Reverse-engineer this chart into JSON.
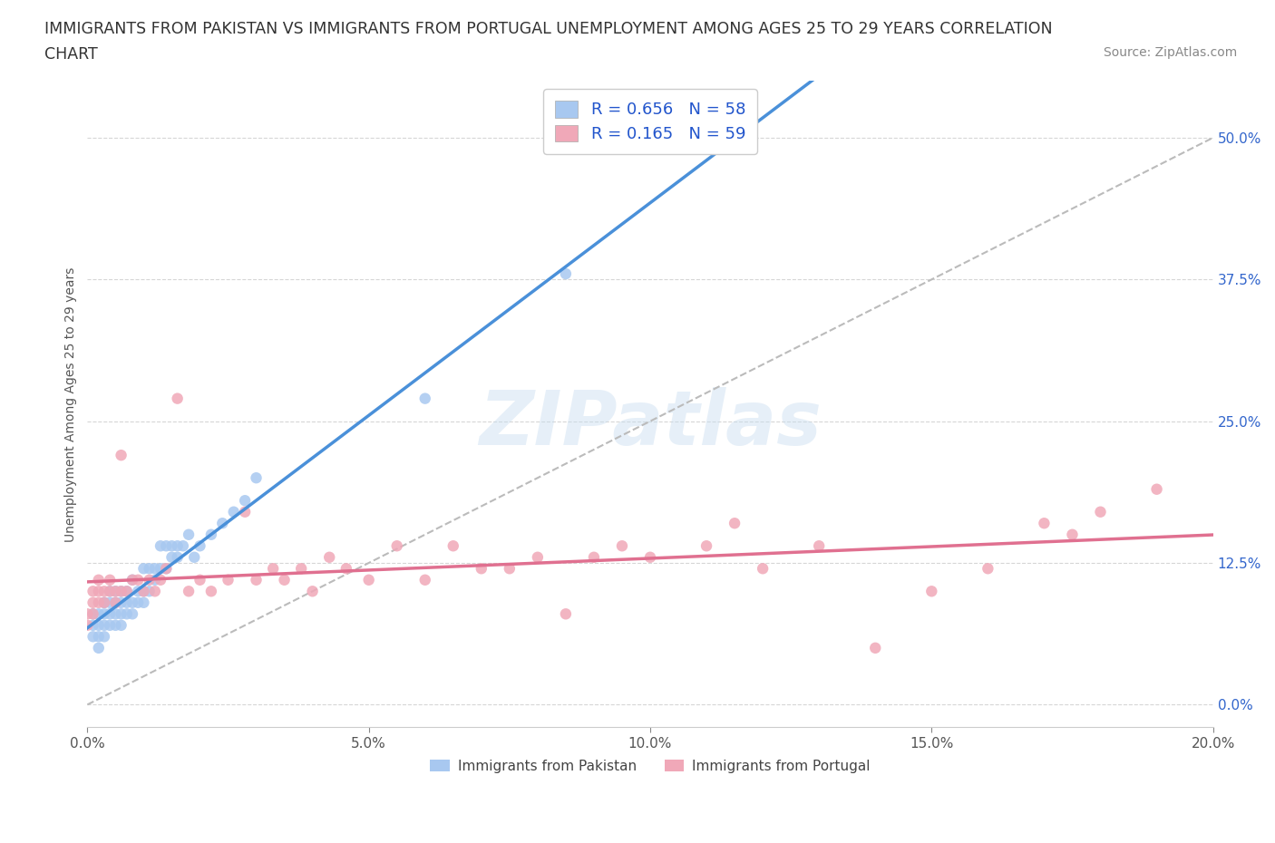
{
  "title_line1": "IMMIGRANTS FROM PAKISTAN VS IMMIGRANTS FROM PORTUGAL UNEMPLOYMENT AMONG AGES 25 TO 29 YEARS CORRELATION",
  "title_line2": "CHART",
  "source_text": "Source: ZipAtlas.com",
  "ylabel": "Unemployment Among Ages 25 to 29 years",
  "xlim": [
    0.0,
    0.2
  ],
  "ylim": [
    -0.02,
    0.55
  ],
  "yticks": [
    0.0,
    0.125,
    0.25,
    0.375,
    0.5
  ],
  "ytick_labels": [
    "0.0%",
    "12.5%",
    "25.0%",
    "37.5%",
    "50.0%"
  ],
  "xticks": [
    0.0,
    0.05,
    0.1,
    0.15,
    0.2
  ],
  "xtick_labels": [
    "0.0%",
    "5.0%",
    "10.0%",
    "15.0%",
    "20.0%"
  ],
  "pakistan_color": "#a8c8f0",
  "portugal_color": "#f0a8b8",
  "pakistan_line_color": "#4a90d9",
  "portugal_line_color": "#e07090",
  "dashed_line_color": "#bbbbbb",
  "legend_text_color": "#2255cc",
  "background_color": "#ffffff",
  "watermark": "ZIPatlas",
  "r_pakistan": 0.656,
  "n_pakistan": 58,
  "r_portugal": 0.165,
  "n_portugal": 59,
  "pakistan_x": [
    0.001,
    0.001,
    0.001,
    0.002,
    0.002,
    0.002,
    0.002,
    0.003,
    0.003,
    0.003,
    0.003,
    0.003,
    0.004,
    0.004,
    0.004,
    0.004,
    0.005,
    0.005,
    0.005,
    0.005,
    0.006,
    0.006,
    0.006,
    0.006,
    0.007,
    0.007,
    0.007,
    0.008,
    0.008,
    0.008,
    0.009,
    0.009,
    0.01,
    0.01,
    0.01,
    0.011,
    0.011,
    0.012,
    0.012,
    0.013,
    0.013,
    0.014,
    0.014,
    0.015,
    0.015,
    0.016,
    0.016,
    0.017,
    0.018,
    0.019,
    0.02,
    0.022,
    0.024,
    0.026,
    0.028,
    0.03,
    0.06,
    0.085
  ],
  "pakistan_y": [
    0.06,
    0.07,
    0.08,
    0.05,
    0.06,
    0.07,
    0.08,
    0.06,
    0.07,
    0.08,
    0.09,
    0.09,
    0.07,
    0.08,
    0.09,
    0.1,
    0.07,
    0.08,
    0.09,
    0.1,
    0.07,
    0.08,
    0.09,
    0.1,
    0.08,
    0.09,
    0.1,
    0.08,
    0.09,
    0.11,
    0.09,
    0.1,
    0.09,
    0.1,
    0.12,
    0.1,
    0.12,
    0.11,
    0.12,
    0.12,
    0.14,
    0.12,
    0.14,
    0.13,
    0.14,
    0.13,
    0.14,
    0.14,
    0.15,
    0.13,
    0.14,
    0.15,
    0.16,
    0.17,
    0.18,
    0.2,
    0.27,
    0.38
  ],
  "portugal_x": [
    0.0,
    0.0,
    0.001,
    0.001,
    0.001,
    0.002,
    0.002,
    0.002,
    0.003,
    0.003,
    0.004,
    0.004,
    0.005,
    0.005,
    0.006,
    0.006,
    0.007,
    0.008,
    0.009,
    0.01,
    0.011,
    0.012,
    0.013,
    0.014,
    0.016,
    0.018,
    0.02,
    0.022,
    0.025,
    0.028,
    0.03,
    0.033,
    0.035,
    0.038,
    0.04,
    0.043,
    0.046,
    0.05,
    0.055,
    0.06,
    0.065,
    0.07,
    0.075,
    0.08,
    0.085,
    0.09,
    0.095,
    0.1,
    0.11,
    0.115,
    0.12,
    0.13,
    0.14,
    0.15,
    0.16,
    0.17,
    0.175,
    0.18,
    0.19
  ],
  "portugal_y": [
    0.07,
    0.08,
    0.08,
    0.09,
    0.1,
    0.09,
    0.1,
    0.11,
    0.09,
    0.1,
    0.1,
    0.11,
    0.1,
    0.09,
    0.1,
    0.22,
    0.1,
    0.11,
    0.11,
    0.1,
    0.11,
    0.1,
    0.11,
    0.12,
    0.27,
    0.1,
    0.11,
    0.1,
    0.11,
    0.17,
    0.11,
    0.12,
    0.11,
    0.12,
    0.1,
    0.13,
    0.12,
    0.11,
    0.14,
    0.11,
    0.14,
    0.12,
    0.12,
    0.13,
    0.08,
    0.13,
    0.14,
    0.13,
    0.14,
    0.16,
    0.12,
    0.14,
    0.05,
    0.1,
    0.12,
    0.16,
    0.15,
    0.17,
    0.19
  ]
}
